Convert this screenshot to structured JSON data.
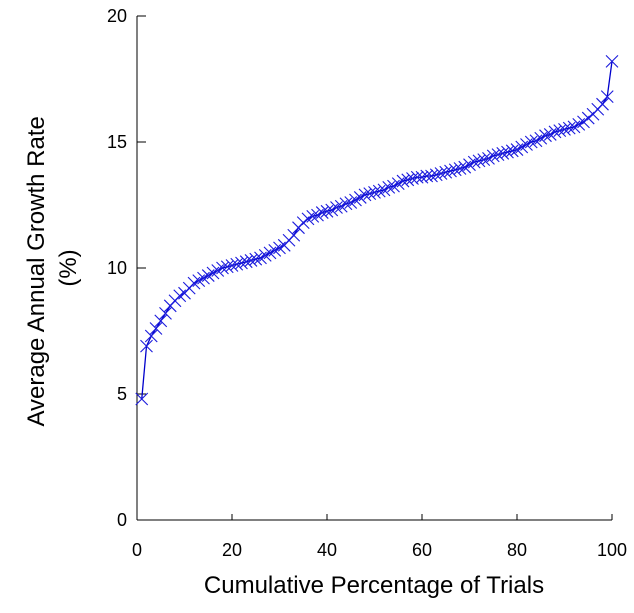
{
  "chart_data": {
    "type": "line",
    "xlabel": "Cumulative Percentage of Trials",
    "ylabel_lines": [
      "Average Annual Growth Rate",
      "(%)"
    ],
    "xlim": [
      0,
      100
    ],
    "ylim": [
      0,
      20
    ],
    "x_ticks": [
      0,
      20,
      40,
      60,
      80,
      100
    ],
    "y_ticks": [
      0,
      5,
      10,
      15,
      20
    ],
    "x_tick_labels": [
      "0",
      "20",
      "40",
      "60",
      "80",
      "100"
    ],
    "y_tick_labels": [
      "0",
      "5",
      "10",
      "15",
      "20"
    ],
    "grid": false,
    "legend": "none",
    "colors": {
      "series": "#0000cc",
      "axes": "#000000"
    },
    "series": [
      {
        "marker": "x",
        "points": [
          [
            1,
            4.8
          ],
          [
            2,
            6.9
          ],
          [
            3,
            7.3
          ],
          [
            4,
            7.6
          ],
          [
            5,
            7.9
          ],
          [
            6,
            8.2
          ],
          [
            7,
            8.5
          ],
          [
            8,
            8.7
          ],
          [
            9,
            8.9
          ],
          [
            10,
            9.0
          ],
          [
            11,
            9.2
          ],
          [
            12,
            9.4
          ],
          [
            13,
            9.5
          ],
          [
            14,
            9.6
          ],
          [
            15,
            9.7
          ],
          [
            16,
            9.8
          ],
          [
            17,
            9.9
          ],
          [
            18,
            10.0
          ],
          [
            19,
            10.05
          ],
          [
            20,
            10.1
          ],
          [
            21,
            10.15
          ],
          [
            22,
            10.2
          ],
          [
            23,
            10.25
          ],
          [
            24,
            10.3
          ],
          [
            25,
            10.35
          ],
          [
            26,
            10.4
          ],
          [
            27,
            10.5
          ],
          [
            28,
            10.6
          ],
          [
            29,
            10.7
          ],
          [
            30,
            10.8
          ],
          [
            31,
            10.9
          ],
          [
            32,
            11.1
          ],
          [
            33,
            11.3
          ],
          [
            34,
            11.6
          ],
          [
            35,
            11.8
          ],
          [
            36,
            11.95
          ],
          [
            37,
            12.05
          ],
          [
            38,
            12.1
          ],
          [
            39,
            12.2
          ],
          [
            40,
            12.25
          ],
          [
            41,
            12.3
          ],
          [
            42,
            12.4
          ],
          [
            43,
            12.45
          ],
          [
            44,
            12.55
          ],
          [
            45,
            12.6
          ],
          [
            46,
            12.7
          ],
          [
            47,
            12.8
          ],
          [
            48,
            12.9
          ],
          [
            49,
            12.95
          ],
          [
            50,
            13.0
          ],
          [
            51,
            13.05
          ],
          [
            52,
            13.1
          ],
          [
            53,
            13.2
          ],
          [
            54,
            13.25
          ],
          [
            55,
            13.35
          ],
          [
            56,
            13.45
          ],
          [
            57,
            13.5
          ],
          [
            58,
            13.55
          ],
          [
            59,
            13.6
          ],
          [
            60,
            13.6
          ],
          [
            61,
            13.65
          ],
          [
            62,
            13.65
          ],
          [
            63,
            13.7
          ],
          [
            64,
            13.75
          ],
          [
            65,
            13.8
          ],
          [
            66,
            13.85
          ],
          [
            67,
            13.9
          ],
          [
            68,
            13.95
          ],
          [
            69,
            14.0
          ],
          [
            70,
            14.1
          ],
          [
            71,
            14.2
          ],
          [
            72,
            14.25
          ],
          [
            73,
            14.3
          ],
          [
            74,
            14.35
          ],
          [
            75,
            14.45
          ],
          [
            76,
            14.5
          ],
          [
            77,
            14.55
          ],
          [
            78,
            14.6
          ],
          [
            79,
            14.65
          ],
          [
            80,
            14.7
          ],
          [
            81,
            14.8
          ],
          [
            82,
            14.9
          ],
          [
            83,
            15.0
          ],
          [
            84,
            15.05
          ],
          [
            85,
            15.15
          ],
          [
            86,
            15.25
          ],
          [
            87,
            15.3
          ],
          [
            88,
            15.4
          ],
          [
            89,
            15.45
          ],
          [
            90,
            15.5
          ],
          [
            91,
            15.55
          ],
          [
            92,
            15.6
          ],
          [
            93,
            15.7
          ],
          [
            94,
            15.8
          ],
          [
            95,
            15.95
          ],
          [
            96,
            16.1
          ],
          [
            97,
            16.3
          ],
          [
            98,
            16.5
          ],
          [
            99,
            16.8
          ],
          [
            100,
            18.2
          ]
        ]
      }
    ]
  }
}
